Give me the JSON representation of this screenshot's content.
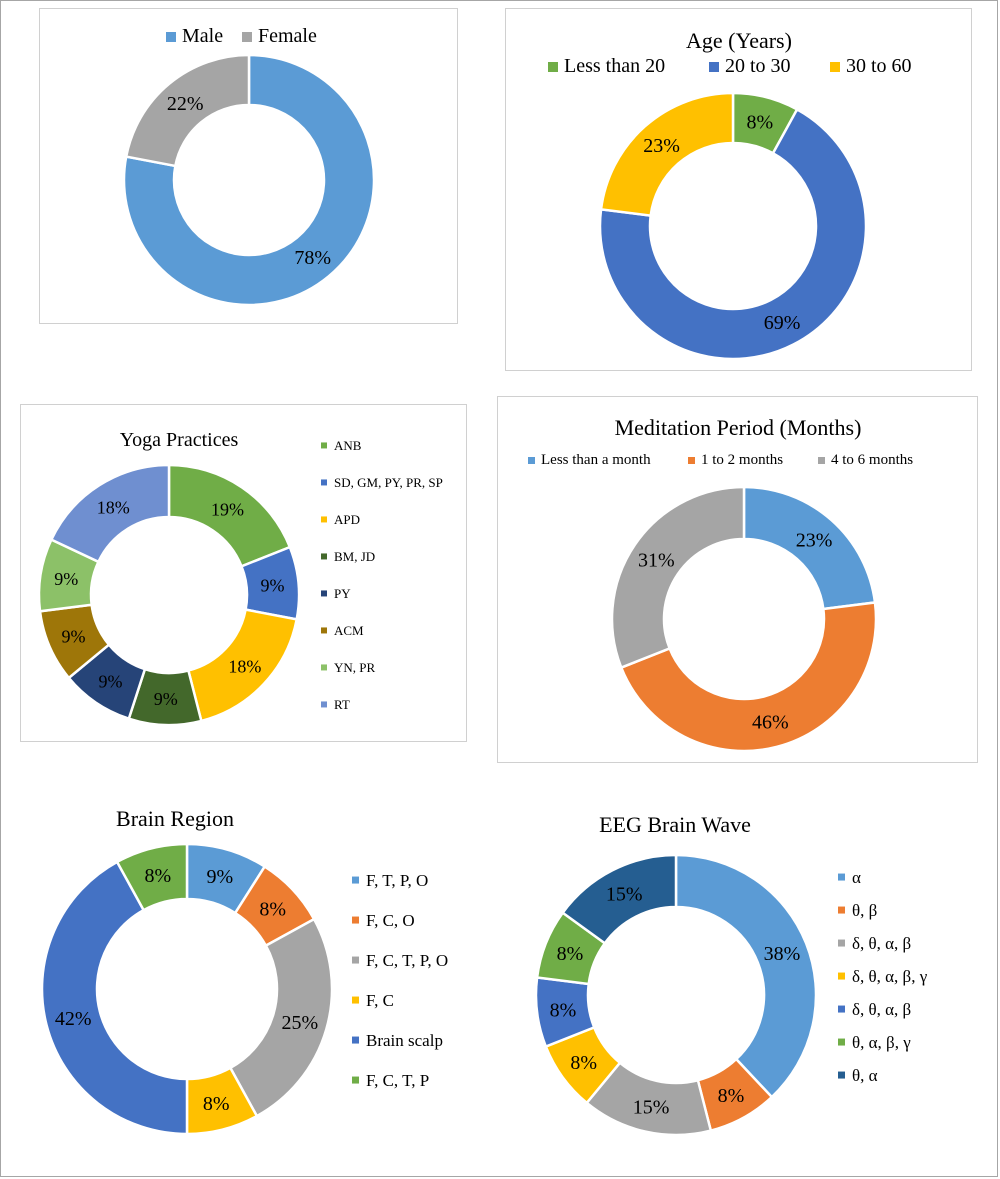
{
  "chart_data": [
    {
      "type": "pie",
      "title": "",
      "categories": [
        "Male",
        "Female"
      ],
      "values": [
        78,
        22
      ],
      "labels": [
        "78%",
        "22%"
      ],
      "colors": [
        "#5b9bd5",
        "#a5a5a5"
      ],
      "legend": "top"
    },
    {
      "type": "pie",
      "title": "Age (Years)",
      "categories": [
        "Less than 20",
        "20 to 30",
        "30 to 60"
      ],
      "values": [
        8,
        69,
        23
      ],
      "labels": [
        "8%",
        "69%",
        "23%"
      ],
      "colors": [
        "#70ad47",
        "#4472c4",
        "#ffc000"
      ],
      "legend": "top"
    },
    {
      "type": "pie",
      "title": "Yoga Practices",
      "categories": [
        "ANB",
        "SD, GM, PY, PR, SP",
        "APD",
        "BM, JD",
        "PY",
        "ACM",
        "YN, PR",
        "RT"
      ],
      "values": [
        19,
        9,
        18,
        9,
        9,
        9,
        9,
        18
      ],
      "labels": [
        "19%",
        "9%",
        "18%",
        "9%",
        "9%",
        "9%",
        "9%",
        "18%"
      ],
      "colors": [
        "#70ad47",
        "#4472c4",
        "#ffc000",
        "#43682b",
        "#264478",
        "#9e7609",
        "#8cc168",
        "#6f8fd0"
      ],
      "legend": "right"
    },
    {
      "type": "pie",
      "title": "Meditation Period (Months)",
      "categories": [
        "Less than a month",
        "1 to 2 months",
        "4 to 6 months"
      ],
      "values": [
        23,
        46,
        31
      ],
      "labels": [
        "23%",
        "46%",
        "31%"
      ],
      "colors": [
        "#5b9bd5",
        "#ed7d31",
        "#a5a5a5"
      ],
      "legend": "top"
    },
    {
      "type": "pie",
      "title": "Brain Region",
      "categories": [
        "F, T, P, O",
        "F, C, O",
        "F, C, T, P, O",
        "F, C",
        "Brain scalp",
        "F, C, T, P"
      ],
      "values": [
        9,
        8,
        25,
        8,
        42,
        8
      ],
      "labels": [
        "9%",
        "8%",
        "25%",
        "8%",
        "42%",
        "8%"
      ],
      "colors": [
        "#5b9bd5",
        "#ed7d31",
        "#a5a5a5",
        "#ffc000",
        "#4472c4",
        "#70ad47"
      ],
      "legend": "right"
    },
    {
      "type": "pie",
      "title": "EEG Brain Wave",
      "categories": [
        "α",
        "θ, β",
        "δ, θ, α, β",
        "δ, θ, α, β, γ",
        "δ, θ, α, β",
        "θ, α, β, γ",
        "θ, α"
      ],
      "values": [
        38,
        8,
        15,
        8,
        8,
        8,
        15
      ],
      "labels": [
        "38%",
        "8%",
        "15%",
        "8%",
        "8%",
        "8%",
        "15%"
      ],
      "colors": [
        "#5b9bd5",
        "#ed7d31",
        "#a5a5a5",
        "#ffc000",
        "#4472c4",
        "#70ad47",
        "#255e91"
      ],
      "legend": "right"
    }
  ]
}
